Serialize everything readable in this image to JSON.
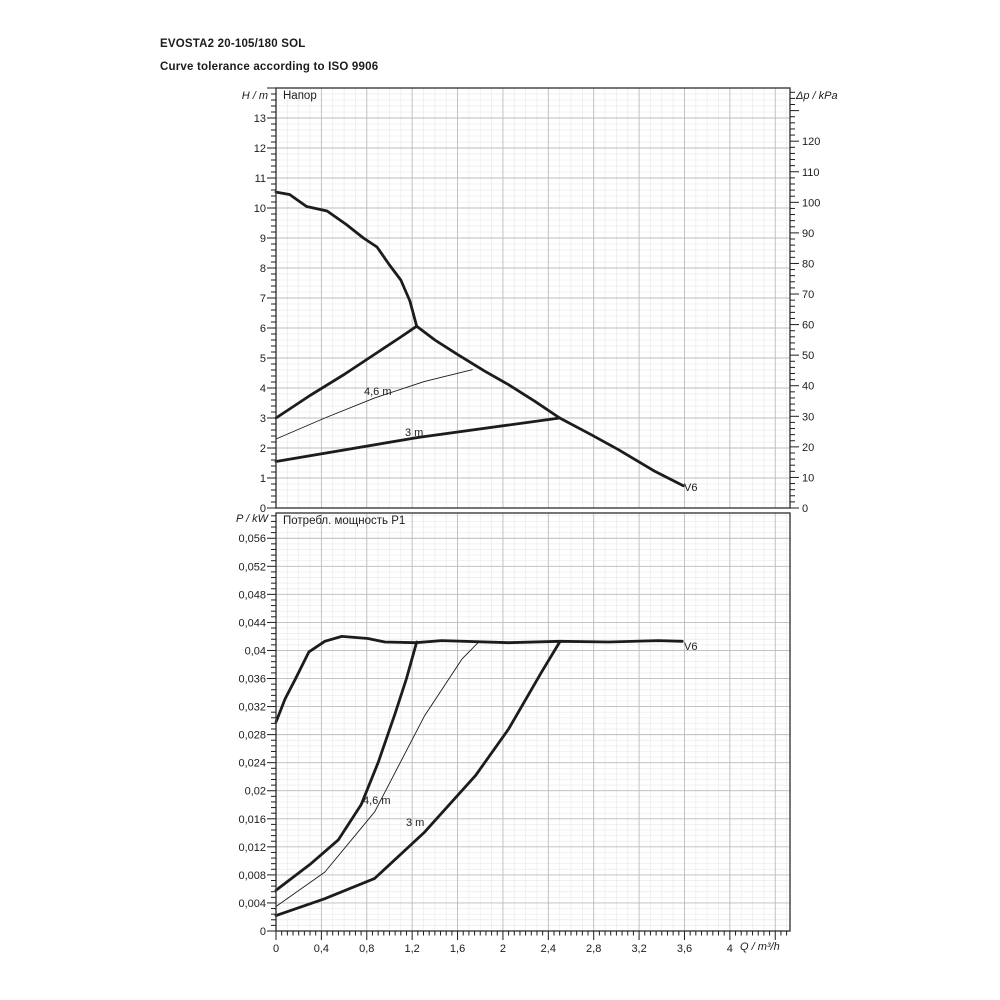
{
  "header": {
    "title": "EVOSTA2 20-105/180 SOL",
    "subtitle": "Curve tolerance according to ISO 9906"
  },
  "colors": {
    "curve": "#1c1c1c",
    "grid_minor": "#ebebeb",
    "grid_major": "#bdbdbd",
    "frame": "#3c3c3c",
    "tick": "#1c1c1c",
    "text": "#1c1c1c"
  },
  "chart_data": [
    {
      "type": "line",
      "title": "Напор",
      "x": {
        "label": "Q / m³/h",
        "min": 0,
        "max": 4.53,
        "grid_minor": 0.1,
        "grid_major": 0.4
      },
      "y_left": {
        "label": "H / m",
        "min": 0,
        "max": 14.0,
        "grid_minor": 0.2,
        "grid_major": 1,
        "ticks": [
          {
            "v": 0,
            "t": "0"
          },
          {
            "v": 1,
            "t": "1"
          },
          {
            "v": 2,
            "t": "2"
          },
          {
            "v": 3,
            "t": "3"
          },
          {
            "v": 4,
            "t": "4"
          },
          {
            "v": 5,
            "t": "5"
          },
          {
            "v": 6,
            "t": "6"
          },
          {
            "v": 7,
            "t": "7"
          },
          {
            "v": 8,
            "t": "8"
          },
          {
            "v": 9,
            "t": "9"
          },
          {
            "v": 10,
            "t": "10"
          },
          {
            "v": 11,
            "t": "11"
          },
          {
            "v": 12,
            "t": "12"
          },
          {
            "v": 13,
            "t": "13"
          }
        ]
      },
      "y_right": {
        "label": "Δp / kPa",
        "min": 0,
        "max": 137.4,
        "tick_minor": 2,
        "ticks": [
          {
            "v": 0,
            "t": "0"
          },
          {
            "v": 10,
            "t": "10"
          },
          {
            "v": 20,
            "t": "20"
          },
          {
            "v": 30,
            "t": "30"
          },
          {
            "v": 40,
            "t": "40"
          },
          {
            "v": 50,
            "t": "50"
          },
          {
            "v": 60,
            "t": "60"
          },
          {
            "v": 70,
            "t": "70"
          },
          {
            "v": 80,
            "t": "80"
          },
          {
            "v": 90,
            "t": "90"
          },
          {
            "v": 100,
            "t": "100"
          },
          {
            "v": 110,
            "t": "110"
          },
          {
            "v": 120,
            "t": "120"
          }
        ]
      },
      "series": [
        {
          "key": "v6-max-speed-head",
          "label": "V6",
          "width": 2.8,
          "points": [
            [
              0,
              10.53
            ],
            [
              0.12,
              10.45
            ],
            [
              0.27,
              10.05
            ],
            [
              0.45,
              9.9
            ],
            [
              0.62,
              9.45
            ],
            [
              0.77,
              9.0
            ],
            [
              0.89,
              8.7
            ],
            [
              1.0,
              8.1
            ],
            [
              1.1,
              7.6
            ],
            [
              1.18,
              6.9
            ],
            [
              1.24,
              6.06
            ],
            [
              1.4,
              5.6
            ],
            [
              1.6,
              5.12
            ],
            [
              1.84,
              4.56
            ],
            [
              2.05,
              4.11
            ],
            [
              2.28,
              3.56
            ],
            [
              2.5,
              3.0
            ],
            [
              2.78,
              2.44
            ],
            [
              3.02,
              1.94
            ],
            [
              3.34,
              1.22
            ],
            [
              3.59,
              0.74
            ]
          ]
        },
        {
          "key": "proportional-pressure-max-head",
          "label": "",
          "width": 2.8,
          "points": [
            [
              0,
              3.0
            ],
            [
              0.3,
              3.75
            ],
            [
              0.6,
              4.45
            ],
            [
              0.9,
              5.2
            ],
            [
              1.1,
              5.7
            ],
            [
              1.24,
              6.06
            ]
          ]
        },
        {
          "key": "constant-4-6m-head",
          "label": "4,6 m",
          "width": 0.9,
          "points": [
            [
              0,
              2.3
            ],
            [
              0.43,
              3.0
            ],
            [
              0.87,
              3.67
            ],
            [
              1.31,
              4.22
            ],
            [
              1.73,
              4.61
            ]
          ]
        },
        {
          "key": "constant-3m-head",
          "label": "3 m",
          "width": 2.8,
          "points": [
            [
              0,
              1.55
            ],
            [
              1.25,
              2.35
            ],
            [
              2.5,
              3.0
            ]
          ]
        }
      ]
    },
    {
      "type": "line",
      "title": "Потребл. мощность P1",
      "x": {
        "label": "Q / m³/h",
        "min": 0,
        "max": 4.53,
        "grid_minor": 0.1,
        "grid_major": 0.4,
        "tick_minor": 0.05,
        "ticks": [
          {
            "v": 0,
            "t": "0"
          },
          {
            "v": 0.4,
            "t": "0,4"
          },
          {
            "v": 0.8,
            "t": "0,8"
          },
          {
            "v": 1.2,
            "t": "1,2"
          },
          {
            "v": 1.6,
            "t": "1,6"
          },
          {
            "v": 2,
            "t": "2"
          },
          {
            "v": 2.4,
            "t": "2,4"
          },
          {
            "v": 2.8,
            "t": "2,8"
          },
          {
            "v": 3.2,
            "t": "3,2"
          },
          {
            "v": 3.6,
            "t": "3,6"
          },
          {
            "v": 4,
            "t": "4"
          }
        ]
      },
      "y_left": {
        "label": "P / kW",
        "min": 0,
        "max": 0.0596,
        "grid_minor": 0.0008,
        "grid_major": 0.004,
        "ticks": [
          {
            "v": 0,
            "t": "0"
          },
          {
            "v": 0.004,
            "t": "0,004"
          },
          {
            "v": 0.008,
            "t": "0,008"
          },
          {
            "v": 0.012,
            "t": "0,012"
          },
          {
            "v": 0.016,
            "t": "0,016"
          },
          {
            "v": 0.02,
            "t": "0,02"
          },
          {
            "v": 0.024,
            "t": "0,024"
          },
          {
            "v": 0.028,
            "t": "0,028"
          },
          {
            "v": 0.032,
            "t": "0,032"
          },
          {
            "v": 0.036,
            "t": "0,036"
          },
          {
            "v": 0.04,
            "t": "0,04"
          },
          {
            "v": 0.044,
            "t": "0,044"
          },
          {
            "v": 0.048,
            "t": "0,048"
          },
          {
            "v": 0.052,
            "t": "0,052"
          },
          {
            "v": 0.056,
            "t": "0,056"
          }
        ]
      },
      "series": [
        {
          "key": "v6-max-speed-power",
          "label": "V6",
          "width": 2.8,
          "points": [
            [
              0,
              0.0298
            ],
            [
              0.08,
              0.0331
            ],
            [
              0.17,
              0.0359
            ],
            [
              0.29,
              0.0398
            ],
            [
              0.43,
              0.0413
            ],
            [
              0.58,
              0.042
            ],
            [
              0.81,
              0.0417
            ],
            [
              0.96,
              0.0412
            ],
            [
              1.23,
              0.0411
            ],
            [
              1.46,
              0.0414
            ],
            [
              2.05,
              0.0411
            ],
            [
              2.5,
              0.0413
            ],
            [
              2.93,
              0.0412
            ],
            [
              3.37,
              0.0414
            ],
            [
              3.58,
              0.0413
            ]
          ]
        },
        {
          "key": "proportional-pressure-max-power",
          "label": "",
          "width": 2.8,
          "points": [
            [
              0,
              0.0058
            ],
            [
              0.3,
              0.0095
            ],
            [
              0.55,
              0.013
            ],
            [
              0.75,
              0.018
            ],
            [
              0.9,
              0.024
            ],
            [
              1.05,
              0.031
            ],
            [
              1.15,
              0.036
            ],
            [
              1.24,
              0.0412
            ]
          ]
        },
        {
          "key": "constant-4-6m-power",
          "label": "4,6 m",
          "width": 0.9,
          "points": [
            [
              0,
              0.0035
            ],
            [
              0.43,
              0.0084
            ],
            [
              0.87,
              0.017
            ],
            [
              1.31,
              0.0307
            ],
            [
              1.64,
              0.0388
            ],
            [
              1.78,
              0.0411
            ]
          ]
        },
        {
          "key": "constant-3m-power",
          "label": "3 m",
          "width": 2.8,
          "points": [
            [
              0,
              0.0022
            ],
            [
              0.43,
              0.0046
            ],
            [
              0.87,
              0.0075
            ],
            [
              1.31,
              0.0141
            ],
            [
              1.76,
              0.0222
            ],
            [
              2.05,
              0.0288
            ],
            [
              2.34,
              0.0369
            ],
            [
              2.5,
              0.0412
            ]
          ]
        }
      ]
    }
  ]
}
